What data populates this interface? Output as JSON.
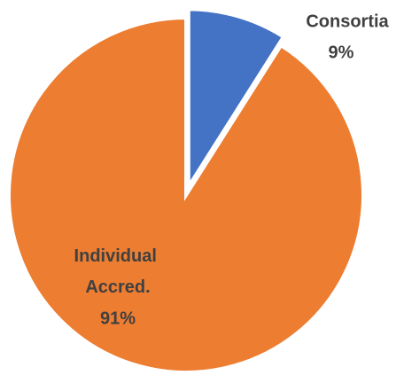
{
  "chart_data": {
    "type": "pie",
    "categories": [
      "Consortia",
      "Individual Accred."
    ],
    "values": [
      9,
      91
    ],
    "value_labels": [
      "9%",
      "91%"
    ],
    "colors": [
      "#4472c4",
      "#ed7d31"
    ]
  }
}
